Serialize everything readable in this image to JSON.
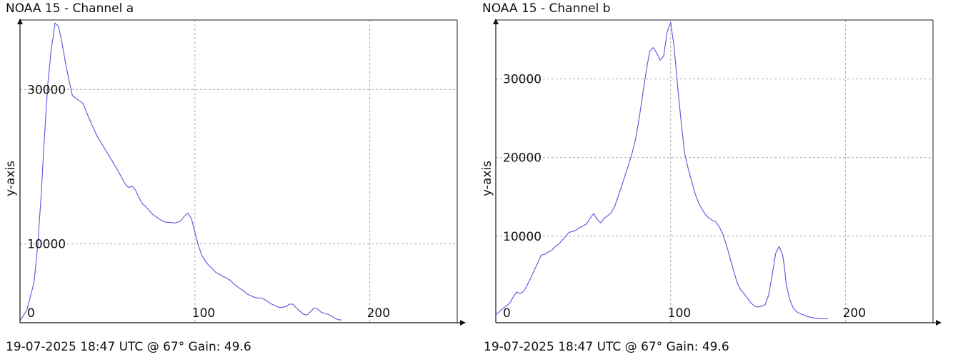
{
  "chart_data": [
    {
      "type": "line",
      "title": "NOAA 15 - Channel a",
      "ylabel": "y-axis",
      "xlabel": "",
      "footer": "19-07-2025 18:47 UTC @ 67° Gain: 49.6",
      "xlim": [
        0,
        250
      ],
      "ylim": [
        -200,
        39000
      ],
      "x_ticks": [
        0,
        100,
        200
      ],
      "y_ticks": [
        10000,
        30000
      ],
      "grid": true,
      "line_color": "#5555dd",
      "series": [
        {
          "x": [
            0,
            4,
            8,
            10,
            12,
            14,
            16,
            18,
            19,
            20,
            22,
            24,
            26,
            28,
            30,
            33,
            36,
            40,
            44,
            48,
            52,
            56,
            60,
            62,
            64,
            66,
            68,
            70,
            72,
            74,
            76,
            78,
            80,
            82,
            84,
            86,
            88,
            90,
            92,
            94,
            96,
            98,
            100,
            102,
            104,
            106,
            108,
            110,
            112,
            114,
            116,
            118,
            120,
            122,
            124,
            126,
            128,
            130,
            132,
            134,
            136,
            138,
            140,
            142,
            144,
            146,
            148,
            150,
            152,
            154,
            156,
            158,
            160,
            162,
            164,
            166,
            168,
            170,
            172,
            174,
            176,
            178,
            180,
            182,
            184
          ],
          "y": [
            0,
            1500,
            5000,
            9500,
            16000,
            24000,
            31000,
            35500,
            36800,
            38600,
            38200,
            36000,
            33500,
            31200,
            29200,
            28700,
            28200,
            26000,
            24000,
            22500,
            21000,
            19500,
            17800,
            17300,
            17500,
            17000,
            16000,
            15200,
            14800,
            14300,
            13800,
            13500,
            13200,
            12900,
            12800,
            12800,
            12700,
            12800,
            13000,
            13600,
            14000,
            13300,
            11500,
            9800,
            8500,
            7800,
            7200,
            6800,
            6300,
            6100,
            5800,
            5600,
            5300,
            4900,
            4500,
            4200,
            3900,
            3500,
            3300,
            3100,
            3000,
            3000,
            2800,
            2500,
            2200,
            2000,
            1800,
            1800,
            1900,
            2200,
            2200,
            1700,
            1300,
            900,
            800,
            1200,
            1700,
            1600,
            1200,
            1000,
            900,
            700,
            400,
            200,
            150
          ]
        }
      ]
    },
    {
      "type": "line",
      "title": "NOAA 15 - Channel b",
      "ylabel": "y-axis",
      "xlabel": "",
      "footer": "19-07-2025 18:47 UTC @ 67° Gain: 49.6",
      "xlim": [
        0,
        250
      ],
      "ylim": [
        -1000,
        37500
      ],
      "x_ticks": [
        0,
        100,
        200
      ],
      "y_ticks": [
        10000,
        20000,
        30000
      ],
      "grid": true,
      "line_color": "#5555dd",
      "series": [
        {
          "x": [
            0,
            4,
            8,
            10,
            12,
            14,
            16,
            18,
            20,
            22,
            24,
            26,
            28,
            30,
            32,
            34,
            36,
            38,
            40,
            42,
            44,
            46,
            48,
            50,
            52,
            54,
            56,
            58,
            60,
            62,
            64,
            66,
            68,
            70,
            72,
            74,
            76,
            78,
            80,
            82,
            84,
            86,
            88,
            90,
            92,
            94,
            96,
            98,
            100,
            102,
            104,
            106,
            108,
            110,
            112,
            114,
            116,
            118,
            120,
            122,
            124,
            126,
            128,
            130,
            132,
            134,
            136,
            138,
            140,
            142,
            144,
            146,
            148,
            150,
            152,
            154,
            156,
            158,
            160,
            162,
            164,
            165,
            166,
            168,
            170,
            172,
            174,
            176,
            178,
            180,
            182,
            184,
            186,
            188,
            190
          ],
          "y": [
            0,
            800,
            1500,
            2300,
            2900,
            2700,
            3000,
            3800,
            4700,
            5700,
            6600,
            7600,
            7700,
            8000,
            8200,
            8700,
            9000,
            9500,
            10000,
            10500,
            10600,
            10800,
            11100,
            11300,
            11600,
            12300,
            12900,
            12100,
            11700,
            12300,
            12600,
            13000,
            13800,
            15100,
            16400,
            17800,
            19100,
            20600,
            22400,
            25000,
            28000,
            31000,
            33500,
            34000,
            33300,
            32400,
            32900,
            36000,
            37200,
            34000,
            29000,
            24500,
            20500,
            18600,
            17000,
            15400,
            14200,
            13400,
            12700,
            12300,
            12000,
            11800,
            11100,
            10200,
            8800,
            7200,
            5600,
            4100,
            3200,
            2700,
            2100,
            1500,
            1100,
            1000,
            1100,
            1300,
            2500,
            5000,
            7800,
            8700,
            7600,
            6200,
            4000,
            2000,
            900,
            400,
            150,
            0,
            -200,
            -300,
            -400,
            -450,
            -500,
            -500,
            -500
          ]
        }
      ]
    }
  ]
}
